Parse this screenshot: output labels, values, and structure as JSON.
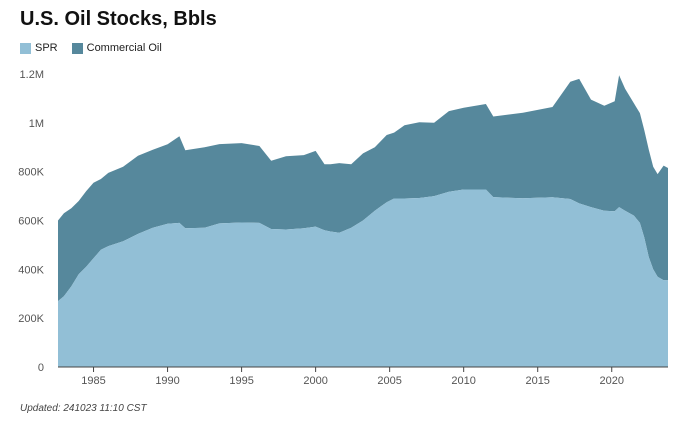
{
  "header": {
    "title": "U.S. Oil Stocks, Bbls"
  },
  "legend": {
    "spr_label": "SPR",
    "commercial_label": "Commercial Oil"
  },
  "footer": {
    "updated": "Updated: 241023 11:10 CST"
  },
  "colors": {
    "spr": "#92bfd6",
    "commercial": "#56889c",
    "axis": "#444444",
    "grid": "#e6e6e6"
  },
  "chart_data": {
    "type": "area",
    "stacked": true,
    "title": "U.S. Oil Stocks, Bbls",
    "xlabel": "",
    "ylabel": "",
    "xlim": [
      1982.6,
      2023.8
    ],
    "ylim": [
      0,
      1200000
    ],
    "x_ticks": [
      1985,
      1990,
      1995,
      2000,
      2005,
      2010,
      2015,
      2020
    ],
    "y_ticks": [
      0,
      200000,
      400000,
      600000,
      800000,
      1000000,
      1200000
    ],
    "y_tick_labels": [
      "0",
      "200K",
      "400K",
      "600K",
      "800K",
      "1M",
      "1.2M"
    ],
    "legend_position": "top-left",
    "grid": false,
    "series": [
      {
        "name": "SPR",
        "points": [
          [
            1982.6,
            270000
          ],
          [
            1983,
            290000
          ],
          [
            1983.5,
            330000
          ],
          [
            1984,
            380000
          ],
          [
            1984.5,
            410000
          ],
          [
            1985,
            445000
          ],
          [
            1985.5,
            480000
          ],
          [
            1986,
            495000
          ],
          [
            1987,
            515000
          ],
          [
            1988,
            545000
          ],
          [
            1989,
            570000
          ],
          [
            1990,
            587000
          ],
          [
            1990.8,
            590000
          ],
          [
            1991.2,
            568000
          ],
          [
            1992.5,
            570000
          ],
          [
            1993.5,
            588000
          ],
          [
            1995,
            592000
          ],
          [
            1996.2,
            590000
          ],
          [
            1997,
            565000
          ],
          [
            1998,
            563000
          ],
          [
            1999.2,
            568000
          ],
          [
            2000,
            575000
          ],
          [
            2000.6,
            560000
          ],
          [
            2001,
            555000
          ],
          [
            2001.6,
            550000
          ],
          [
            2002.4,
            570000
          ],
          [
            2003.2,
            600000
          ],
          [
            2004,
            640000
          ],
          [
            2004.8,
            675000
          ],
          [
            2005.3,
            690000
          ],
          [
            2006,
            690000
          ],
          [
            2007,
            692000
          ],
          [
            2008,
            700000
          ],
          [
            2009,
            718000
          ],
          [
            2010,
            727000
          ],
          [
            2011.5,
            727000
          ],
          [
            2012,
            696000
          ],
          [
            2014,
            691000
          ],
          [
            2016,
            695000
          ],
          [
            2017.2,
            688000
          ],
          [
            2017.8,
            670000
          ],
          [
            2018.6,
            655000
          ],
          [
            2019.5,
            640000
          ],
          [
            2020.2,
            638000
          ],
          [
            2020.5,
            655000
          ],
          [
            2020.9,
            640000
          ],
          [
            2021.5,
            620000
          ],
          [
            2021.9,
            590000
          ],
          [
            2022.2,
            530000
          ],
          [
            2022.5,
            450000
          ],
          [
            2022.8,
            400000
          ],
          [
            2023.1,
            370000
          ],
          [
            2023.5,
            355000
          ],
          [
            2023.8,
            355000
          ]
        ]
      },
      {
        "name": "Commercial Oil",
        "points": [
          [
            1982.6,
            330000
          ],
          [
            1983,
            340000
          ],
          [
            1983.5,
            320000
          ],
          [
            1984,
            300000
          ],
          [
            1984.5,
            310000
          ],
          [
            1985,
            310000
          ],
          [
            1985.5,
            290000
          ],
          [
            1986,
            300000
          ],
          [
            1987,
            305000
          ],
          [
            1988,
            320000
          ],
          [
            1989,
            320000
          ],
          [
            1990,
            325000
          ],
          [
            1990.4,
            355000
          ],
          [
            1990.8,
            320000
          ],
          [
            1991.2,
            330000
          ],
          [
            1992.5,
            325000
          ],
          [
            1993.5,
            325000
          ],
          [
            1995,
            315000
          ],
          [
            1996.2,
            280000
          ],
          [
            1997,
            300000
          ],
          [
            1998,
            300000
          ],
          [
            1999.2,
            310000
          ],
          [
            2000,
            270000
          ],
          [
            2000.6,
            275000
          ],
          [
            2001,
            285000
          ],
          [
            2001.6,
            260000
          ],
          [
            2002.4,
            275000
          ],
          [
            2003.2,
            260000
          ],
          [
            2004,
            275000
          ],
          [
            2004.8,
            270000
          ],
          [
            2005.3,
            300000
          ],
          [
            2006,
            310000
          ],
          [
            2007,
            300000
          ],
          [
            2008,
            330000
          ],
          [
            2009,
            335000
          ],
          [
            2010,
            350000
          ],
          [
            2011.5,
            330000
          ],
          [
            2012,
            350000
          ],
          [
            2014,
            370000
          ],
          [
            2016,
            480000
          ],
          [
            2017.2,
            510000
          ],
          [
            2017.8,
            440000
          ],
          [
            2018.6,
            430000
          ],
          [
            2019.5,
            450000
          ],
          [
            2020.2,
            540000
          ],
          [
            2020.5,
            500000
          ],
          [
            2020.9,
            460000
          ],
          [
            2021.5,
            450000
          ],
          [
            2021.9,
            440000
          ],
          [
            2022.2,
            440000
          ],
          [
            2022.5,
            420000
          ],
          [
            2022.8,
            420000
          ],
          [
            2023.1,
            470000
          ],
          [
            2023.5,
            460000
          ],
          [
            2023.8,
            410000
          ]
        ]
      }
    ]
  }
}
